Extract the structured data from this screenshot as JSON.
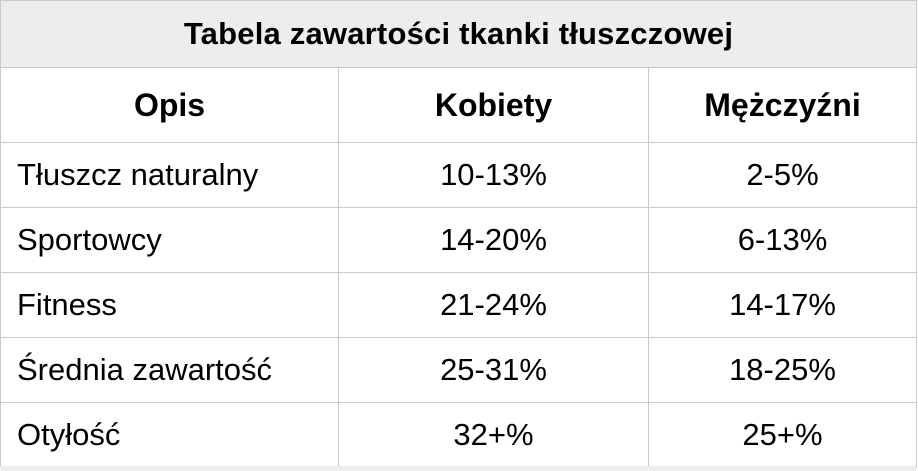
{
  "table": {
    "title": "Tabela zawartości tkanki tłuszczowej",
    "headers": [
      "Opis",
      "Kobiety",
      "Mężczyźni"
    ],
    "rows": [
      {
        "description": "Tłuszcz naturalny",
        "women": "10-13%",
        "men": "2-5%"
      },
      {
        "description": "Sportowcy",
        "women": "14-20%",
        "men": "6-13%"
      },
      {
        "description": "Fitness",
        "women": "21-24%",
        "men": "14-17%"
      },
      {
        "description": "Średnia zawartość",
        "women": "25-31%",
        "men": "18-25%"
      },
      {
        "description": "Otyłość",
        "women": "32+%",
        "men": "25+%"
      }
    ]
  },
  "colors": {
    "title_background": "#ededed",
    "grid_line": "#c9c9c9",
    "text": "#000000"
  }
}
